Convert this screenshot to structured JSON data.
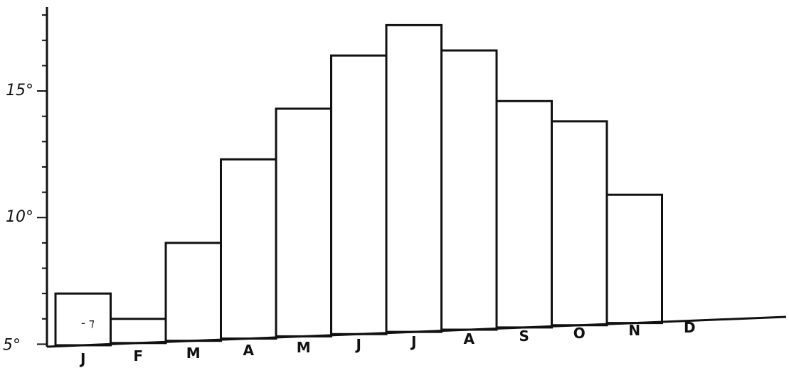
{
  "chart_data": {
    "type": "bar",
    "categories": [
      "J",
      "F",
      "M",
      "A",
      "M",
      "J",
      "J",
      "A",
      "S",
      "O",
      "N",
      "D"
    ],
    "values": [
      7.0,
      6.0,
      9.0,
      12.3,
      14.3,
      16.4,
      17.6,
      16.6,
      14.6,
      13.8,
      10.9,
      null
    ],
    "yticks": [
      5,
      10,
      15
    ],
    "ytick_labels": [
      "5°",
      "10°",
      "15°"
    ],
    "ylim": [
      4.9,
      18.2
    ],
    "annotation": "- ⁊",
    "grid": false,
    "title": "",
    "xlabel": "",
    "ylabel": ""
  }
}
